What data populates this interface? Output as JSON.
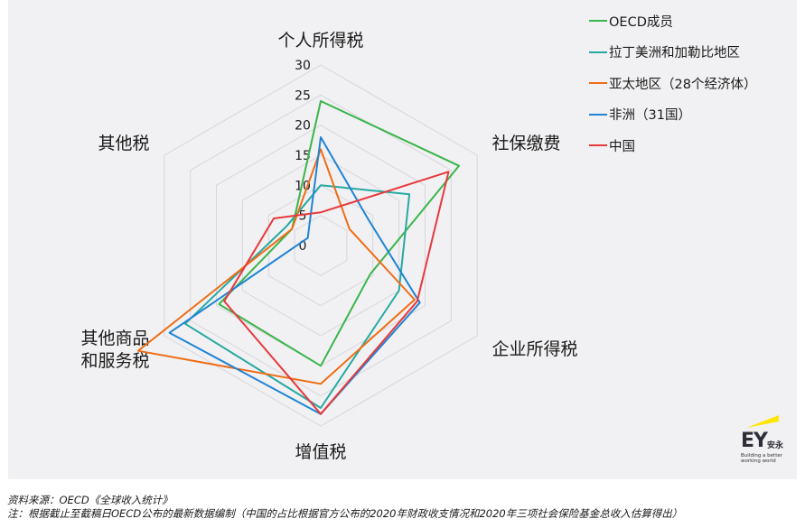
{
  "chart_data": {
    "type": "radar",
    "axes": [
      "个人所得税",
      "社保缴费",
      "企业所得税",
      "增值税",
      "其他商品\n和服务税",
      "其他税"
    ],
    "rticks": [
      0,
      5,
      10,
      15,
      20,
      25,
      30
    ],
    "rlim": [
      0,
      30
    ],
    "grid": true,
    "legend": "top-right",
    "series": [
      {
        "name": "OECD成员",
        "color": "#3ab54a",
        "values": [
          24,
          26.5,
          9.5,
          20,
          19.5,
          5.5
        ]
      },
      {
        "name": "拉丁美洲和加勒比地区",
        "color": "#27a9a2",
        "values": [
          10,
          17,
          15,
          27,
          26,
          6.5
        ]
      },
      {
        "name": "亚太地区（28个经济体）",
        "color": "#ef6c14",
        "values": [
          16,
          5.5,
          18,
          23,
          35,
          5.5
        ]
      },
      {
        "name": "非洲（31国）",
        "color": "#1f84d4",
        "values": [
          18,
          9,
          19,
          28,
          29,
          2.5
        ]
      },
      {
        "name": "中国",
        "color": "#e8393c",
        "values": [
          5.5,
          24.5,
          18.5,
          28,
          18.5,
          9
        ]
      }
    ]
  },
  "logo": {
    "brand": "EY",
    "cn": "安永",
    "tagline": "Building a better working world"
  },
  "notes": {
    "source": "资料来源：OECD《全球收入统计》",
    "note": "注：根据截止至截稿日OECD公布的最新数据编制（中国的占比根据官方公布的2020年财政收支情况和2020年三项社会保险基金总收入估算得出）"
  }
}
